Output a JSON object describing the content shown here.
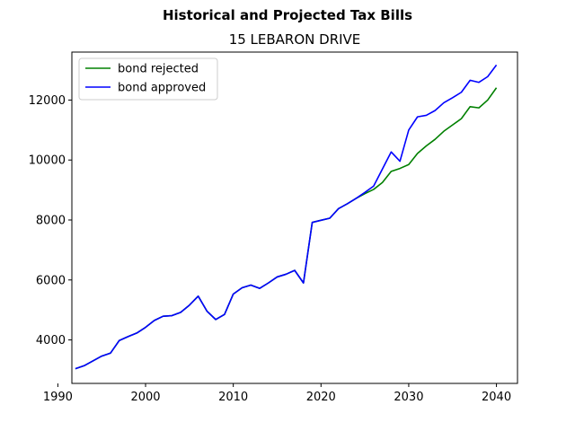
{
  "chart_data": {
    "type": "line",
    "suptitle": "Historical and Projected Tax Bills",
    "title": "15 LEBARON DRIVE",
    "xlabel": "",
    "ylabel": "",
    "xlim": [
      1991.6,
      2042.4
    ],
    "ylim": [
      2550,
      13600
    ],
    "xticks": [
      1990,
      2000,
      2010,
      2020,
      2030,
      2040
    ],
    "yticks": [
      4000,
      6000,
      8000,
      10000,
      12000
    ],
    "grid": false,
    "legend_position": "top-left",
    "x": [
      1992,
      1993,
      1994,
      1995,
      1996,
      1997,
      1998,
      1999,
      2000,
      2001,
      2002,
      2003,
      2004,
      2005,
      2006,
      2007,
      2008,
      2009,
      2010,
      2011,
      2012,
      2013,
      2014,
      2015,
      2016,
      2017,
      2018,
      2019,
      2020,
      2021,
      2022,
      2023,
      2024,
      2025,
      2026,
      2027,
      2028,
      2029,
      2030,
      2031,
      2032,
      2033,
      2034,
      2035,
      2036,
      2037,
      2038,
      2039,
      2040
    ],
    "series": [
      {
        "name": "bond rejected",
        "color": "#008000",
        "values": [
          3040,
          3140,
          3300,
          3460,
          3560,
          3980,
          4110,
          4230,
          4420,
          4650,
          4790,
          4810,
          4920,
          5160,
          5460,
          4960,
          4680,
          4850,
          5530,
          5740,
          5830,
          5720,
          5900,
          6100,
          6190,
          6320,
          5900,
          7920,
          7990,
          8060,
          8380,
          8540,
          8720,
          8880,
          9020,
          9250,
          9620,
          9720,
          9850,
          10220,
          10470,
          10690,
          10960,
          11170,
          11380,
          11780,
          11740,
          12000,
          12410
        ]
      },
      {
        "name": "bond approved",
        "color": "#0000ff",
        "values": [
          3040,
          3140,
          3300,
          3460,
          3560,
          3980,
          4110,
          4230,
          4420,
          4650,
          4790,
          4810,
          4920,
          5160,
          5460,
          4960,
          4680,
          4850,
          5530,
          5740,
          5830,
          5720,
          5900,
          6100,
          6190,
          6320,
          5900,
          7920,
          7990,
          8060,
          8380,
          8540,
          8720,
          8920,
          9130,
          9700,
          10270,
          9960,
          11000,
          11440,
          11490,
          11650,
          11910,
          12080,
          12260,
          12660,
          12590,
          12780,
          13170
        ]
      }
    ]
  }
}
